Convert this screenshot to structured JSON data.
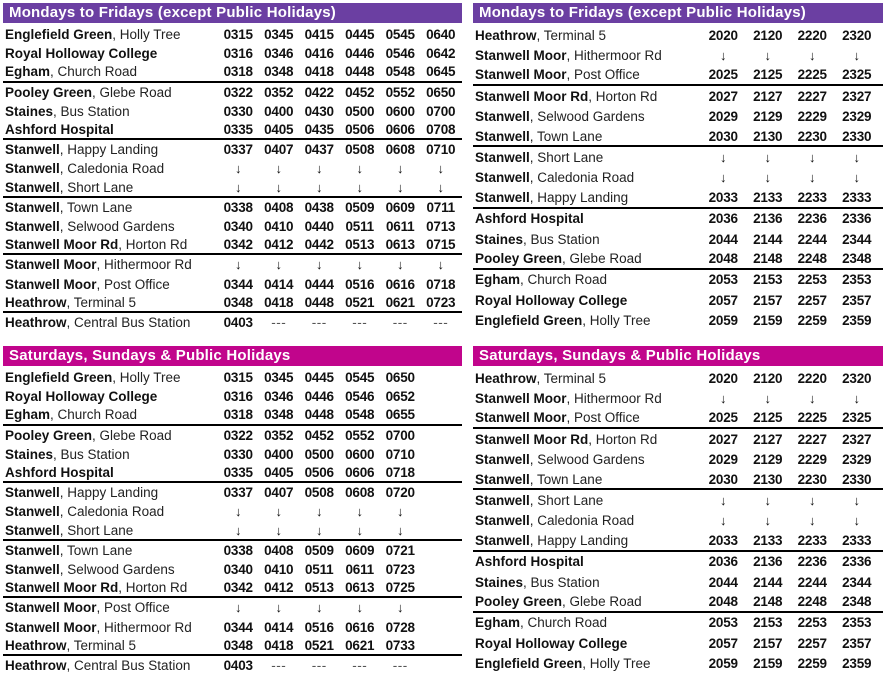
{
  "colors": {
    "weekday_header_bg": "#6B3FA2",
    "weekend_header_bg": "#C1058C",
    "header_text": "#FFFFFF",
    "separator_rule": "#000000"
  },
  "glyphs": {
    "through_arrow": "↓",
    "no_service": "---"
  },
  "tables": [
    {
      "header": "Mondays to Fridays (except Public Holidays)",
      "theme": "weekday",
      "position": "top-left",
      "rows": [
        {
          "place": "Englefield Green",
          "detail": ", Holly Tree",
          "times": [
            "0315",
            "0345",
            "0415",
            "0445",
            "0545",
            "0640"
          ]
        },
        {
          "place": "Royal Holloway College",
          "detail": "",
          "times": [
            "0316",
            "0346",
            "0416",
            "0446",
            "0546",
            "0642"
          ]
        },
        {
          "place": "Egham",
          "detail": ", Church Road",
          "times": [
            "0318",
            "0348",
            "0418",
            "0448",
            "0548",
            "0645"
          ],
          "rule": true
        },
        {
          "place": "Pooley Green",
          "detail": ", Glebe Road",
          "times": [
            "0322",
            "0352",
            "0422",
            "0452",
            "0552",
            "0650"
          ]
        },
        {
          "place": "Staines",
          "detail": ", Bus Station",
          "times": [
            "0330",
            "0400",
            "0430",
            "0500",
            "0600",
            "0700"
          ]
        },
        {
          "place": "Ashford Hospital",
          "detail": "",
          "times": [
            "0335",
            "0405",
            "0435",
            "0506",
            "0606",
            "0708"
          ],
          "rule": true
        },
        {
          "place": "Stanwell",
          "detail": ", Happy Landing",
          "times": [
            "0337",
            "0407",
            "0437",
            "0508",
            "0608",
            "0710"
          ]
        },
        {
          "place": "Stanwell",
          "detail": ", Caledonia Road",
          "times": [
            "↓",
            "↓",
            "↓",
            "↓",
            "↓",
            "↓"
          ]
        },
        {
          "place": "Stanwell",
          "detail": ", Short Lane",
          "times": [
            "↓",
            "↓",
            "↓",
            "↓",
            "↓",
            "↓"
          ],
          "rule": true
        },
        {
          "place": "Stanwell",
          "detail": ", Town Lane",
          "times": [
            "0338",
            "0408",
            "0438",
            "0509",
            "0609",
            "0711"
          ]
        },
        {
          "place": "Stanwell",
          "detail": ", Selwood Gardens",
          "times": [
            "0340",
            "0410",
            "0440",
            "0511",
            "0611",
            "0713"
          ]
        },
        {
          "place": "Stanwell Moor Rd",
          "detail": ", Horton Rd",
          "times": [
            "0342",
            "0412",
            "0442",
            "0513",
            "0613",
            "0715"
          ],
          "rule": true
        },
        {
          "place": "Stanwell Moor",
          "detail": ", Hithermoor Rd",
          "times": [
            "↓",
            "↓",
            "↓",
            "↓",
            "↓",
            "↓"
          ]
        },
        {
          "place": "Stanwell Moor",
          "detail": ", Post Office",
          "times": [
            "0344",
            "0414",
            "0444",
            "0516",
            "0616",
            "0718"
          ]
        },
        {
          "place": "Heathrow",
          "detail": ", Terminal 5",
          "times": [
            "0348",
            "0418",
            "0448",
            "0521",
            "0621",
            "0723"
          ],
          "rule": true
        },
        {
          "place": "Heathrow",
          "detail": ", Central Bus Station",
          "times": [
            "0403",
            "---",
            "---",
            "---",
            "---",
            "---"
          ]
        }
      ]
    },
    {
      "header": "Mondays to Fridays (except Public Holidays)",
      "theme": "weekday",
      "position": "top-right",
      "rows": [
        {
          "place": "Heathrow",
          "detail": ", Terminal 5",
          "times": [
            "2020",
            "2120",
            "2220",
            "2320"
          ]
        },
        {
          "place": "Stanwell Moor",
          "detail": ", Hithermoor Rd",
          "times": [
            "↓",
            "↓",
            "↓",
            "↓"
          ]
        },
        {
          "place": "Stanwell Moor",
          "detail": ", Post Office",
          "times": [
            "2025",
            "2125",
            "2225",
            "2325"
          ],
          "rule": true
        },
        {
          "place": "Stanwell Moor Rd",
          "detail": ", Horton Rd",
          "times": [
            "2027",
            "2127",
            "2227",
            "2327"
          ]
        },
        {
          "place": "Stanwell",
          "detail": ", Selwood Gardens",
          "times": [
            "2029",
            "2129",
            "2229",
            "2329"
          ]
        },
        {
          "place": "Stanwell",
          "detail": ", Town Lane",
          "times": [
            "2030",
            "2130",
            "2230",
            "2330"
          ],
          "rule": true
        },
        {
          "place": "Stanwell",
          "detail": ", Short Lane",
          "times": [
            "↓",
            "↓",
            "↓",
            "↓"
          ]
        },
        {
          "place": "Stanwell",
          "detail": ", Caledonia Road",
          "times": [
            "↓",
            "↓",
            "↓",
            "↓"
          ]
        },
        {
          "place": "Stanwell",
          "detail": ", Happy Landing",
          "times": [
            "2033",
            "2133",
            "2233",
            "2333"
          ],
          "rule": true
        },
        {
          "place": "Ashford Hospital",
          "detail": "",
          "times": [
            "2036",
            "2136",
            "2236",
            "2336"
          ]
        },
        {
          "place": "Staines",
          "detail": ", Bus Station",
          "times": [
            "2044",
            "2144",
            "2244",
            "2344"
          ]
        },
        {
          "place": "Pooley Green",
          "detail": ", Glebe Road",
          "times": [
            "2048",
            "2148",
            "2248",
            "2348"
          ],
          "rule": true
        },
        {
          "place": "Egham",
          "detail": ", Church Road",
          "times": [
            "2053",
            "2153",
            "2253",
            "2353"
          ]
        },
        {
          "place": "Royal Holloway College",
          "detail": "",
          "times": [
            "2057",
            "2157",
            "2257",
            "2357"
          ]
        },
        {
          "place": "Englefield Green",
          "detail": ", Holly Tree",
          "times": [
            "2059",
            "2159",
            "2259",
            "2359"
          ]
        }
      ]
    },
    {
      "header": "Saturdays, Sundays & Public Holidays",
      "theme": "weekend",
      "position": "bottom-left",
      "rows": [
        {
          "place": "Englefield Green",
          "detail": ", Holly Tree",
          "times": [
            "0315",
            "0345",
            "0445",
            "0545",
            "0650"
          ]
        },
        {
          "place": "Royal Holloway College",
          "detail": "",
          "times": [
            "0316",
            "0346",
            "0446",
            "0546",
            "0652"
          ]
        },
        {
          "place": "Egham",
          "detail": ", Church Road",
          "times": [
            "0318",
            "0348",
            "0448",
            "0548",
            "0655"
          ],
          "rule": true
        },
        {
          "place": "Pooley Green",
          "detail": ", Glebe Road",
          "times": [
            "0322",
            "0352",
            "0452",
            "0552",
            "0700"
          ]
        },
        {
          "place": "Staines",
          "detail": ", Bus Station",
          "times": [
            "0330",
            "0400",
            "0500",
            "0600",
            "0710"
          ]
        },
        {
          "place": "Ashford Hospital",
          "detail": "",
          "times": [
            "0335",
            "0405",
            "0506",
            "0606",
            "0718"
          ],
          "rule": true
        },
        {
          "place": "Stanwell",
          "detail": ", Happy Landing",
          "times": [
            "0337",
            "0407",
            "0508",
            "0608",
            "0720"
          ]
        },
        {
          "place": "Stanwell",
          "detail": ", Caledonia Road",
          "times": [
            "↓",
            "↓",
            "↓",
            "↓",
            "↓"
          ]
        },
        {
          "place": "Stanwell",
          "detail": ", Short Lane",
          "times": [
            "↓",
            "↓",
            "↓",
            "↓",
            "↓"
          ],
          "rule": true
        },
        {
          "place": "Stanwell",
          "detail": ", Town Lane",
          "times": [
            "0338",
            "0408",
            "0509",
            "0609",
            "0721"
          ]
        },
        {
          "place": "Stanwell",
          "detail": ", Selwood Gardens",
          "times": [
            "0340",
            "0410",
            "0511",
            "0611",
            "0723"
          ]
        },
        {
          "place": "Stanwell Moor Rd",
          "detail": ", Horton Rd",
          "times": [
            "0342",
            "0412",
            "0513",
            "0613",
            "0725"
          ],
          "rule": true
        },
        {
          "place": "Stanwell Moor",
          "detail": ", Post Office",
          "times": [
            "↓",
            "↓",
            "↓",
            "↓",
            "↓"
          ]
        },
        {
          "place": "Stanwell Moor",
          "detail": ", Hithermoor Rd",
          "times": [
            "0344",
            "0414",
            "0516",
            "0616",
            "0728"
          ]
        },
        {
          "place": "Heathrow",
          "detail": ", Terminal 5",
          "times": [
            "0348",
            "0418",
            "0521",
            "0621",
            "0733"
          ],
          "rule": true
        },
        {
          "place": "Heathrow",
          "detail": ", Central Bus Station",
          "times": [
            "0403",
            "---",
            "---",
            "---",
            "---"
          ]
        }
      ]
    },
    {
      "header": "Saturdays, Sundays & Public Holidays",
      "theme": "weekend",
      "position": "bottom-right",
      "rows": [
        {
          "place": "Heathrow",
          "detail": ", Terminal 5",
          "times": [
            "2020",
            "2120",
            "2220",
            "2320"
          ]
        },
        {
          "place": "Stanwell Moor",
          "detail": ", Hithermoor Rd",
          "times": [
            "↓",
            "↓",
            "↓",
            "↓"
          ]
        },
        {
          "place": "Stanwell Moor",
          "detail": ", Post Office",
          "times": [
            "2025",
            "2125",
            "2225",
            "2325"
          ],
          "rule": true
        },
        {
          "place": "Stanwell Moor Rd",
          "detail": ", Horton Rd",
          "times": [
            "2027",
            "2127",
            "2227",
            "2327"
          ]
        },
        {
          "place": "Stanwell",
          "detail": ", Selwood Gardens",
          "times": [
            "2029",
            "2129",
            "2229",
            "2329"
          ]
        },
        {
          "place": "Stanwell",
          "detail": ", Town Lane",
          "times": [
            "2030",
            "2130",
            "2230",
            "2330"
          ],
          "rule": true
        },
        {
          "place": "Stanwell",
          "detail": ", Short Lane",
          "times": [
            "↓",
            "↓",
            "↓",
            "↓"
          ]
        },
        {
          "place": "Stanwell",
          "detail": ", Caledonia Road",
          "times": [
            "↓",
            "↓",
            "↓",
            "↓"
          ]
        },
        {
          "place": "Stanwell",
          "detail": ", Happy Landing",
          "times": [
            "2033",
            "2133",
            "2233",
            "2333"
          ],
          "rule": true
        },
        {
          "place": "Ashford Hospital",
          "detail": "",
          "times": [
            "2036",
            "2136",
            "2236",
            "2336"
          ]
        },
        {
          "place": "Staines",
          "detail": ", Bus Station",
          "times": [
            "2044",
            "2144",
            "2244",
            "2344"
          ]
        },
        {
          "place": "Pooley Green",
          "detail": ", Glebe Road",
          "times": [
            "2048",
            "2148",
            "2248",
            "2348"
          ],
          "rule": true
        },
        {
          "place": "Egham",
          "detail": ", Church Road",
          "times": [
            "2053",
            "2153",
            "2253",
            "2353"
          ]
        },
        {
          "place": "Royal Holloway College",
          "detail": "",
          "times": [
            "2057",
            "2157",
            "2257",
            "2357"
          ]
        },
        {
          "place": "Englefield Green",
          "detail": ", Holly Tree",
          "times": [
            "2059",
            "2159",
            "2259",
            "2359"
          ]
        }
      ]
    }
  ]
}
